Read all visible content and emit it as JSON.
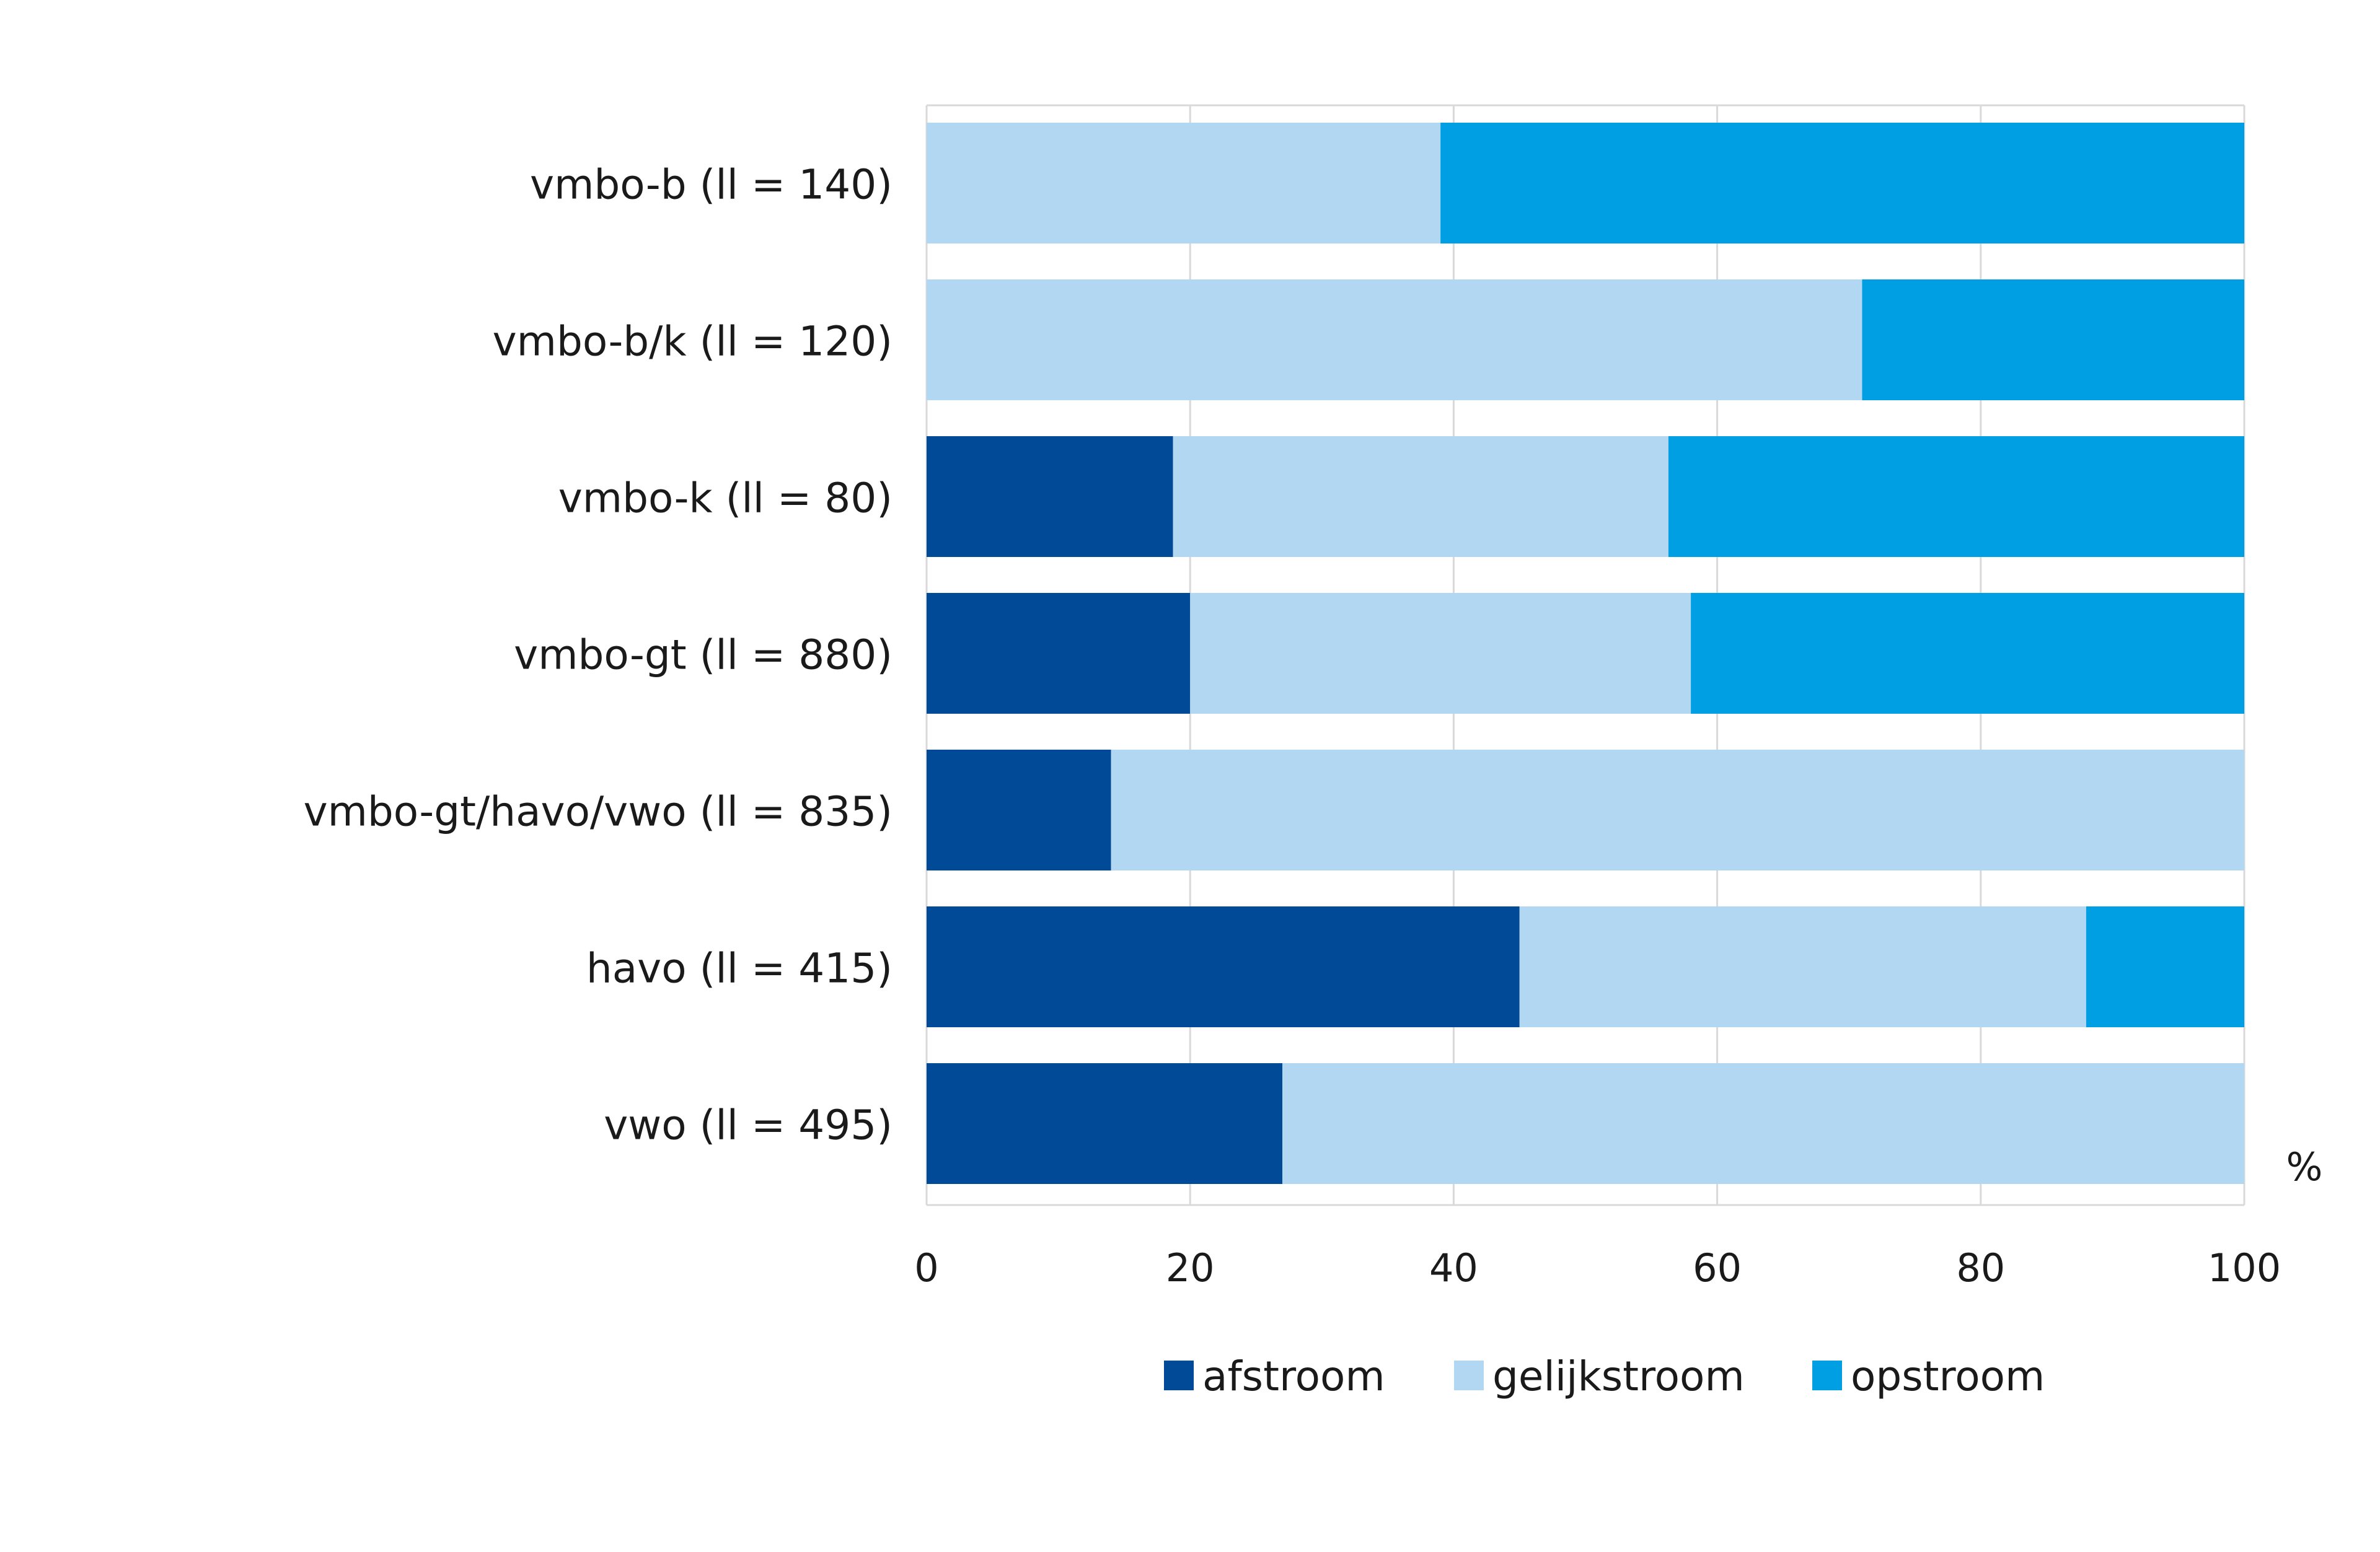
{
  "chart_data": {
    "type": "bar",
    "orientation": "horizontal",
    "stacked": true,
    "title": "",
    "xlabel": "%",
    "ylabel": "",
    "xlim": [
      0,
      100
    ],
    "xticks": [
      0,
      20,
      40,
      60,
      80,
      100
    ],
    "xtick_labels": [
      "0",
      "20",
      "40",
      "60",
      "80",
      "100"
    ],
    "grid": "vertical",
    "legend_position": "bottom",
    "categories": [
      "vmbo-b (ll = 140)",
      "vmbo-b/k (ll = 120)",
      "vmbo-k (ll = 80)",
      "vmbo-gt (ll = 880)",
      "vmbo-gt/havo/vwo (ll = 835)",
      "havo (ll = 415)",
      "vwo (ll = 495)"
    ],
    "series": [
      {
        "name": "afstroom",
        "color": "#004A98",
        "values": [
          0,
          0,
          18.7,
          20,
          14,
          45,
          27
        ]
      },
      {
        "name": "gelijkstroom",
        "color": "#B2D7F3",
        "values": [
          39,
          71,
          37.6,
          38,
          86,
          43,
          73
        ]
      },
      {
        "name": "opstroom",
        "color": "#009FE3",
        "values": [
          61,
          29,
          43.7,
          42,
          0,
          12,
          0
        ]
      }
    ]
  },
  "colors": {
    "grid": "#d9d9d9",
    "axis_line": "#bfbfbf",
    "text": "#1a1a1a"
  }
}
